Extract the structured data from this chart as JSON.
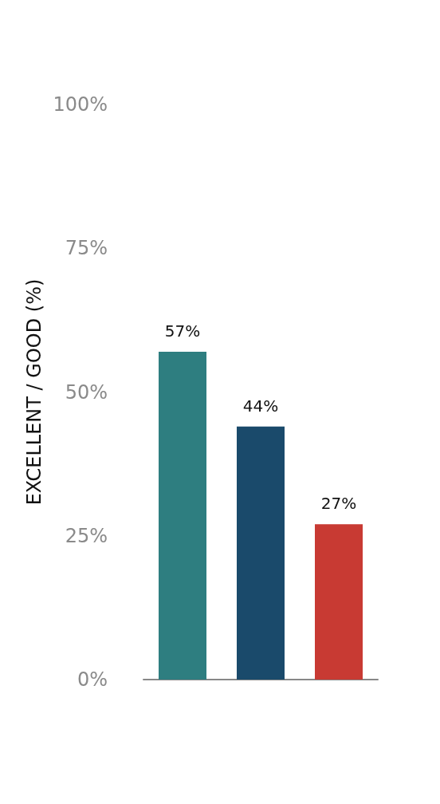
{
  "chart_data": {
    "type": "bar",
    "ylabel": "EXCELLENT / GOOD (%)",
    "categories": [
      null,
      null,
      null
    ],
    "values": [
      57,
      44,
      27
    ],
    "colors": [
      "#2e7e80",
      "#1a4a6b",
      "#c83a33"
    ],
    "value_labels": [
      "57%",
      "44%",
      "27%"
    ],
    "ylim": [
      0,
      100
    ],
    "yticks": [
      {
        "value": 0,
        "label": "0%"
      },
      {
        "value": 25,
        "label": "25%"
      },
      {
        "value": 50,
        "label": "50%"
      },
      {
        "value": 75,
        "label": "75%"
      },
      {
        "value": 100,
        "label": "100%"
      }
    ],
    "grid": false
  }
}
